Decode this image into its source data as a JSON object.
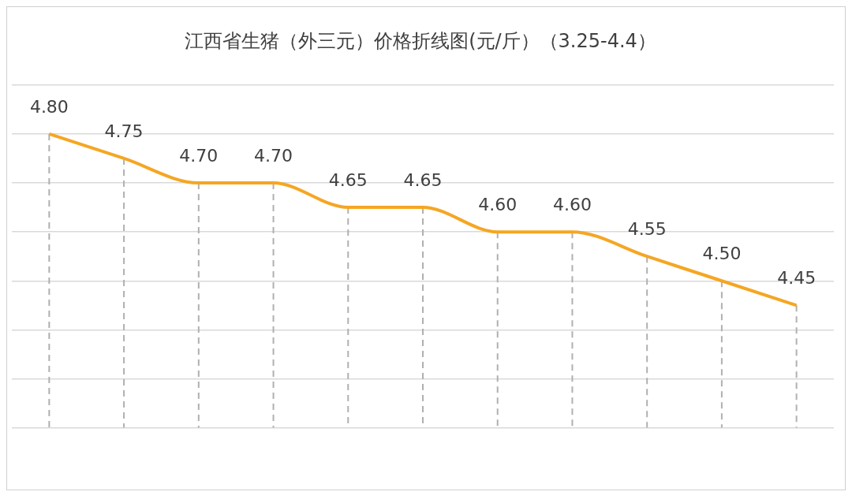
{
  "chart_data": {
    "type": "line",
    "title": "江西省生猪（外三元）价格折线图(元/斤）（3.25-4.4）",
    "categories": [
      null,
      null,
      null,
      null,
      null,
      null,
      null,
      null,
      null,
      null,
      null
    ],
    "series": [
      {
        "color": "#f5a623",
        "values": [
          4.8,
          4.75,
          4.7,
          4.7,
          4.65,
          4.65,
          4.6,
          4.6,
          4.55,
          4.5,
          4.45
        ],
        "value_labels": [
          "4.80",
          "4.75",
          "4.70",
          "4.70",
          "4.65",
          "4.65",
          "4.60",
          "4.60",
          "4.55",
          "4.50",
          "4.45"
        ]
      }
    ],
    "ylim": [
      4.2,
      4.9
    ],
    "yticks": [
      {
        "value": 4.2,
        "label": null
      },
      {
        "value": 4.3,
        "label": null
      },
      {
        "value": 4.4,
        "label": null
      },
      {
        "value": 4.5,
        "label": null
      },
      {
        "value": 4.6,
        "label": null
      },
      {
        "value": 4.7,
        "label": null
      },
      {
        "value": 4.8,
        "label": null
      },
      {
        "value": 4.9,
        "label": null
      }
    ],
    "grid": true,
    "legend": false,
    "marker": "none",
    "line_style": "solid"
  }
}
